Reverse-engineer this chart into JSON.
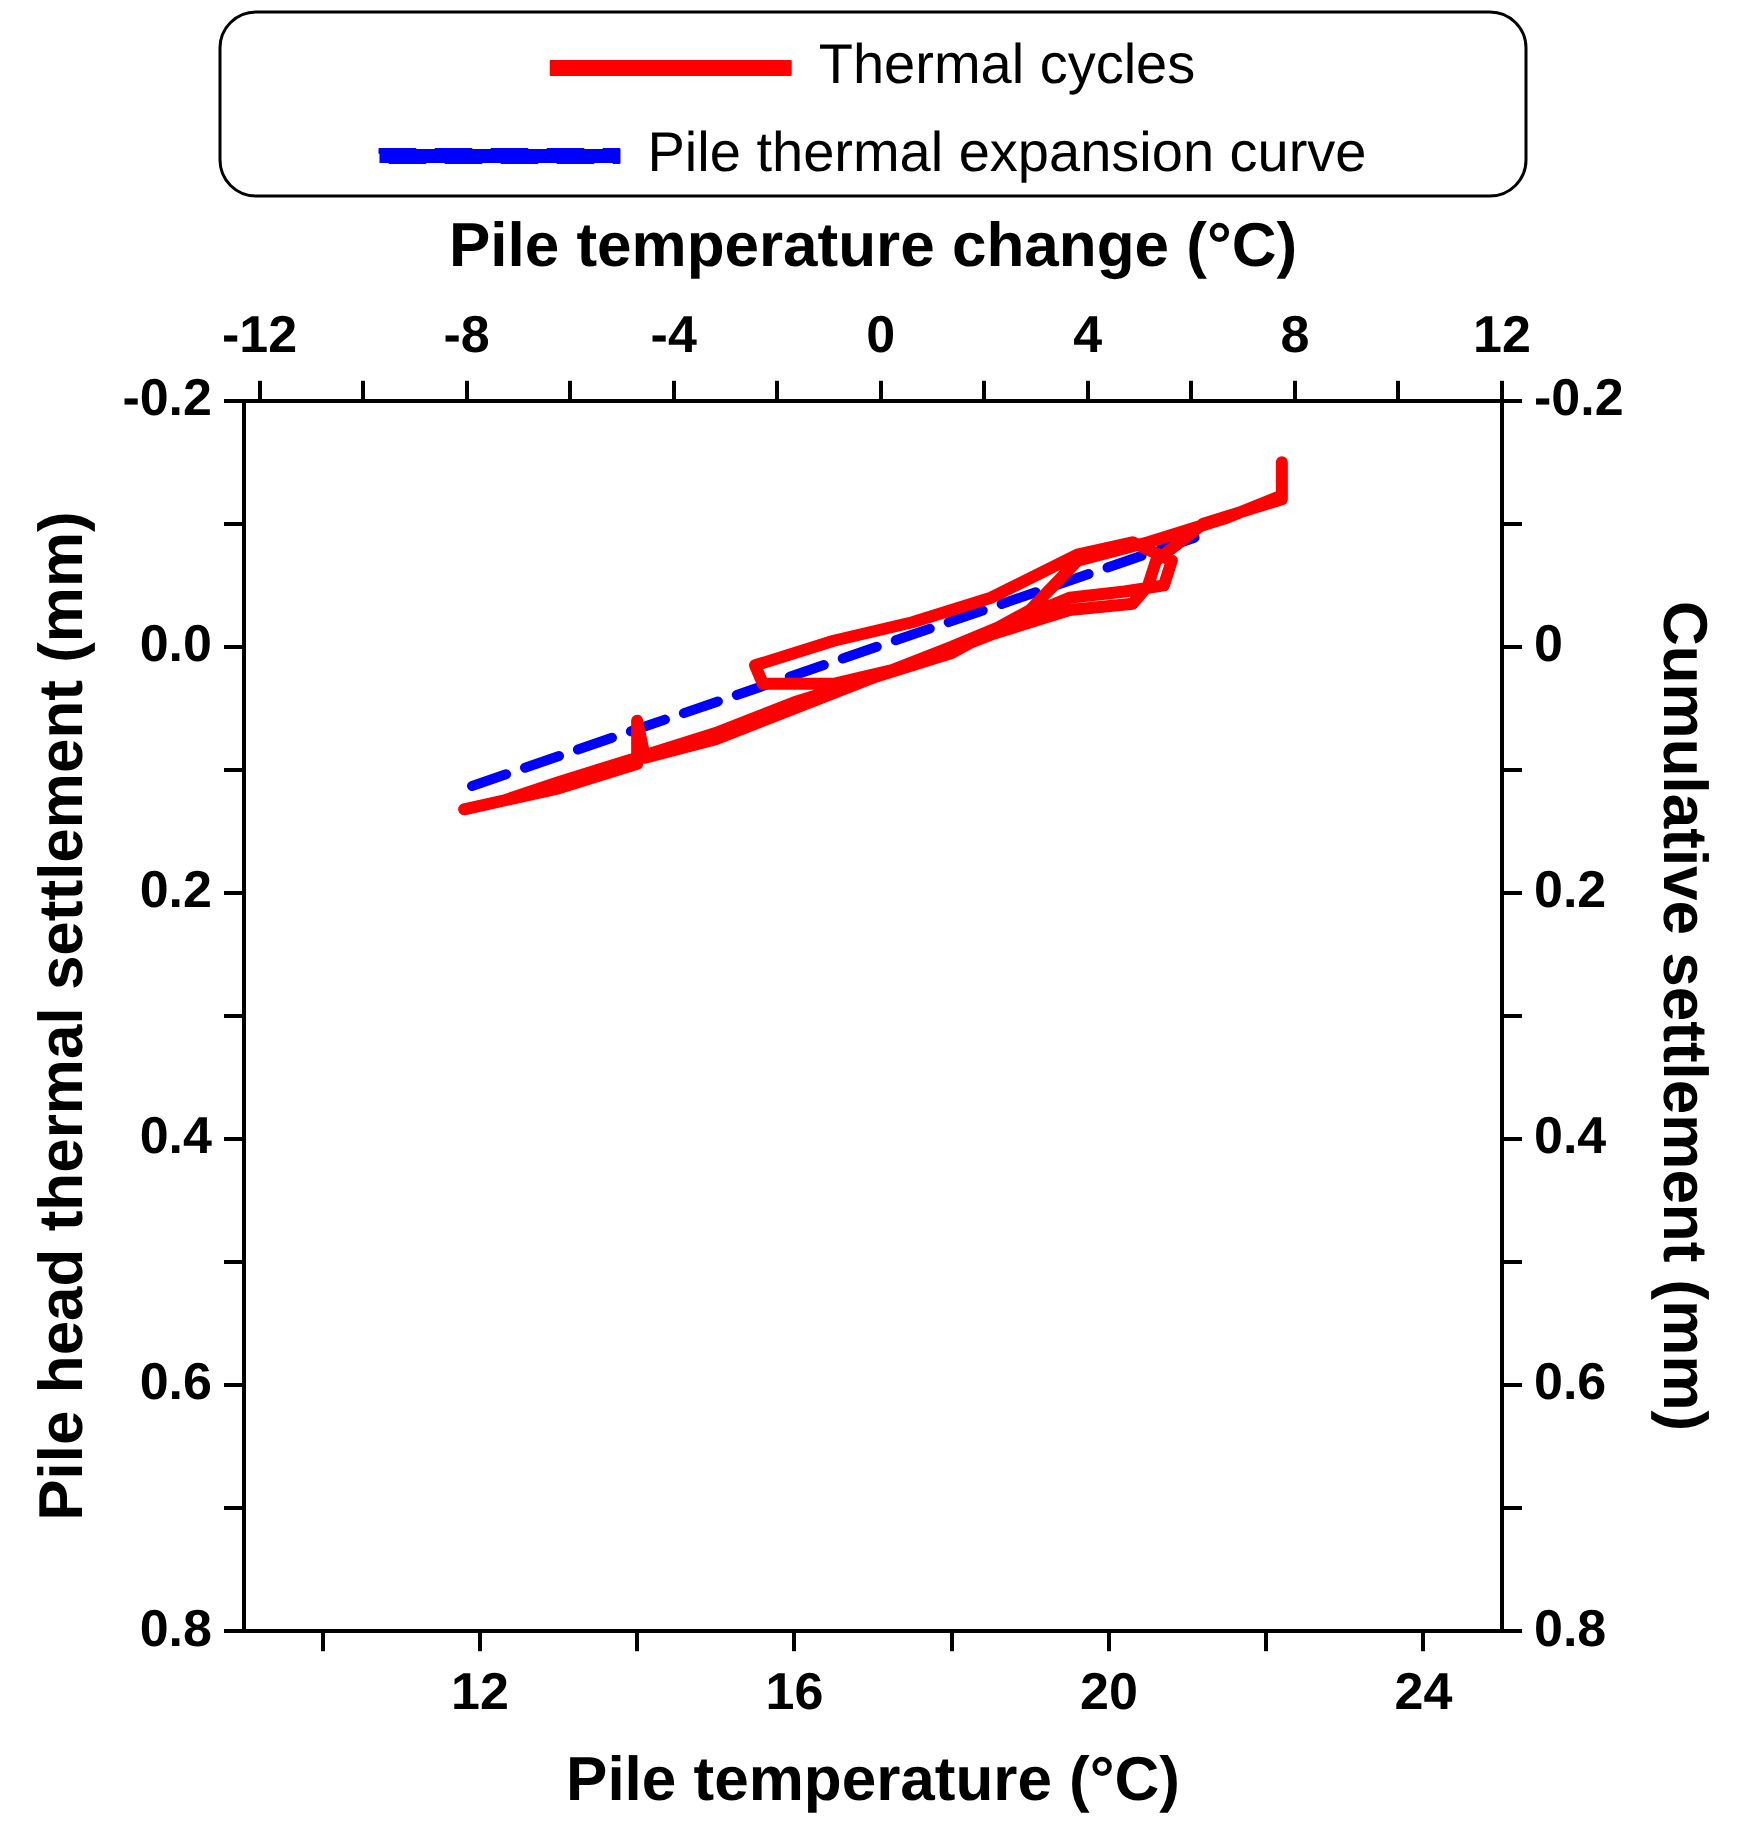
{
  "chart_data": {
    "type": "line",
    "xlabel": "Pile temperature (°C)",
    "x2label": "Pile temperature change (°C)",
    "ylabel": "Pile head thermal settlement (mm)",
    "y2label": "Cumulative settlement (mm)",
    "xlim": [
      9,
      25
    ],
    "xticks": [
      {
        "value": 10,
        "label": null
      },
      12,
      {
        "value": 14,
        "label": null
      },
      16,
      {
        "value": 18,
        "label": null
      },
      20,
      {
        "value": 22,
        "label": null
      },
      24
    ],
    "x2lim": [
      -12.3,
      12
    ],
    "x2ticks": [
      -12,
      {
        "value": -10,
        "label": null
      },
      -8,
      {
        "value": -6,
        "label": null
      },
      -4,
      {
        "value": -2,
        "label": null
      },
      0,
      {
        "value": 2,
        "label": null
      },
      4,
      {
        "value": 6,
        "label": null
      },
      8,
      {
        "value": 10,
        "label": null
      },
      12
    ],
    "ylim": [
      0.8,
      -0.2
    ],
    "yticks": [
      -0.2,
      {
        "value": -0.1,
        "label": null
      },
      {
        "value": 0,
        "label": "0.0"
      },
      {
        "value": 0.1,
        "label": null
      },
      0.2,
      {
        "value": 0.3,
        "label": null
      },
      0.4,
      {
        "value": 0.5,
        "label": null
      },
      0.6,
      {
        "value": 0.7,
        "label": null
      },
      0.8
    ],
    "y2lim": [
      0.8,
      -0.2
    ],
    "y2ticks": [
      -0.2,
      {
        "value": -0.1,
        "label": null
      },
      0,
      {
        "value": 0.1,
        "label": null
      },
      0.2,
      {
        "value": 0.3,
        "label": null
      },
      0.4,
      {
        "value": 0.5,
        "label": null
      },
      0.6,
      {
        "value": 0.7,
        "label": null
      },
      0.8
    ],
    "legend": "top",
    "marker": "none",
    "series": [
      {
        "name": "Thermal cycles",
        "color": "#ff0000",
        "line_style": "solid",
        "x": [
          11.8,
          13,
          14,
          14,
          14.1,
          15,
          16,
          17,
          18,
          19,
          19.6,
          20.5,
          21.5,
          22.2,
          22.2,
          22.2,
          21.2,
          20.6,
          20.5,
          20.3,
          19.5,
          18.5,
          17.5,
          16.5,
          15.6,
          15.5,
          16.5,
          17.5,
          18.5,
          19.6,
          20.3,
          20.8,
          20.7,
          20.2,
          19.5,
          18,
          17,
          16,
          15,
          14,
          13,
          12.3
        ],
        "values": [
          0.132,
          0.115,
          0.095,
          0.06,
          0.09,
          0.075,
          0.05,
          0.025,
          0.005,
          -0.03,
          -0.07,
          -0.085,
          -0.105,
          -0.123,
          -0.15,
          -0.12,
          -0.1,
          -0.07,
          -0.05,
          -0.035,
          -0.03,
          -0.01,
          0.015,
          0.03,
          0.03,
          0.015,
          -0.005,
          -0.02,
          -0.04,
          -0.075,
          -0.085,
          -0.07,
          -0.05,
          -0.045,
          -0.04,
          0.0,
          0.025,
          0.045,
          0.07,
          0.09,
          0.11,
          0.125
        ]
      },
      {
        "name": "Pile thermal expansion curve",
        "color": "#0000ff",
        "line_style": "dashed",
        "x": [
          11.9,
          21.1
        ],
        "values": [
          0.113,
          -0.089
        ]
      }
    ]
  }
}
